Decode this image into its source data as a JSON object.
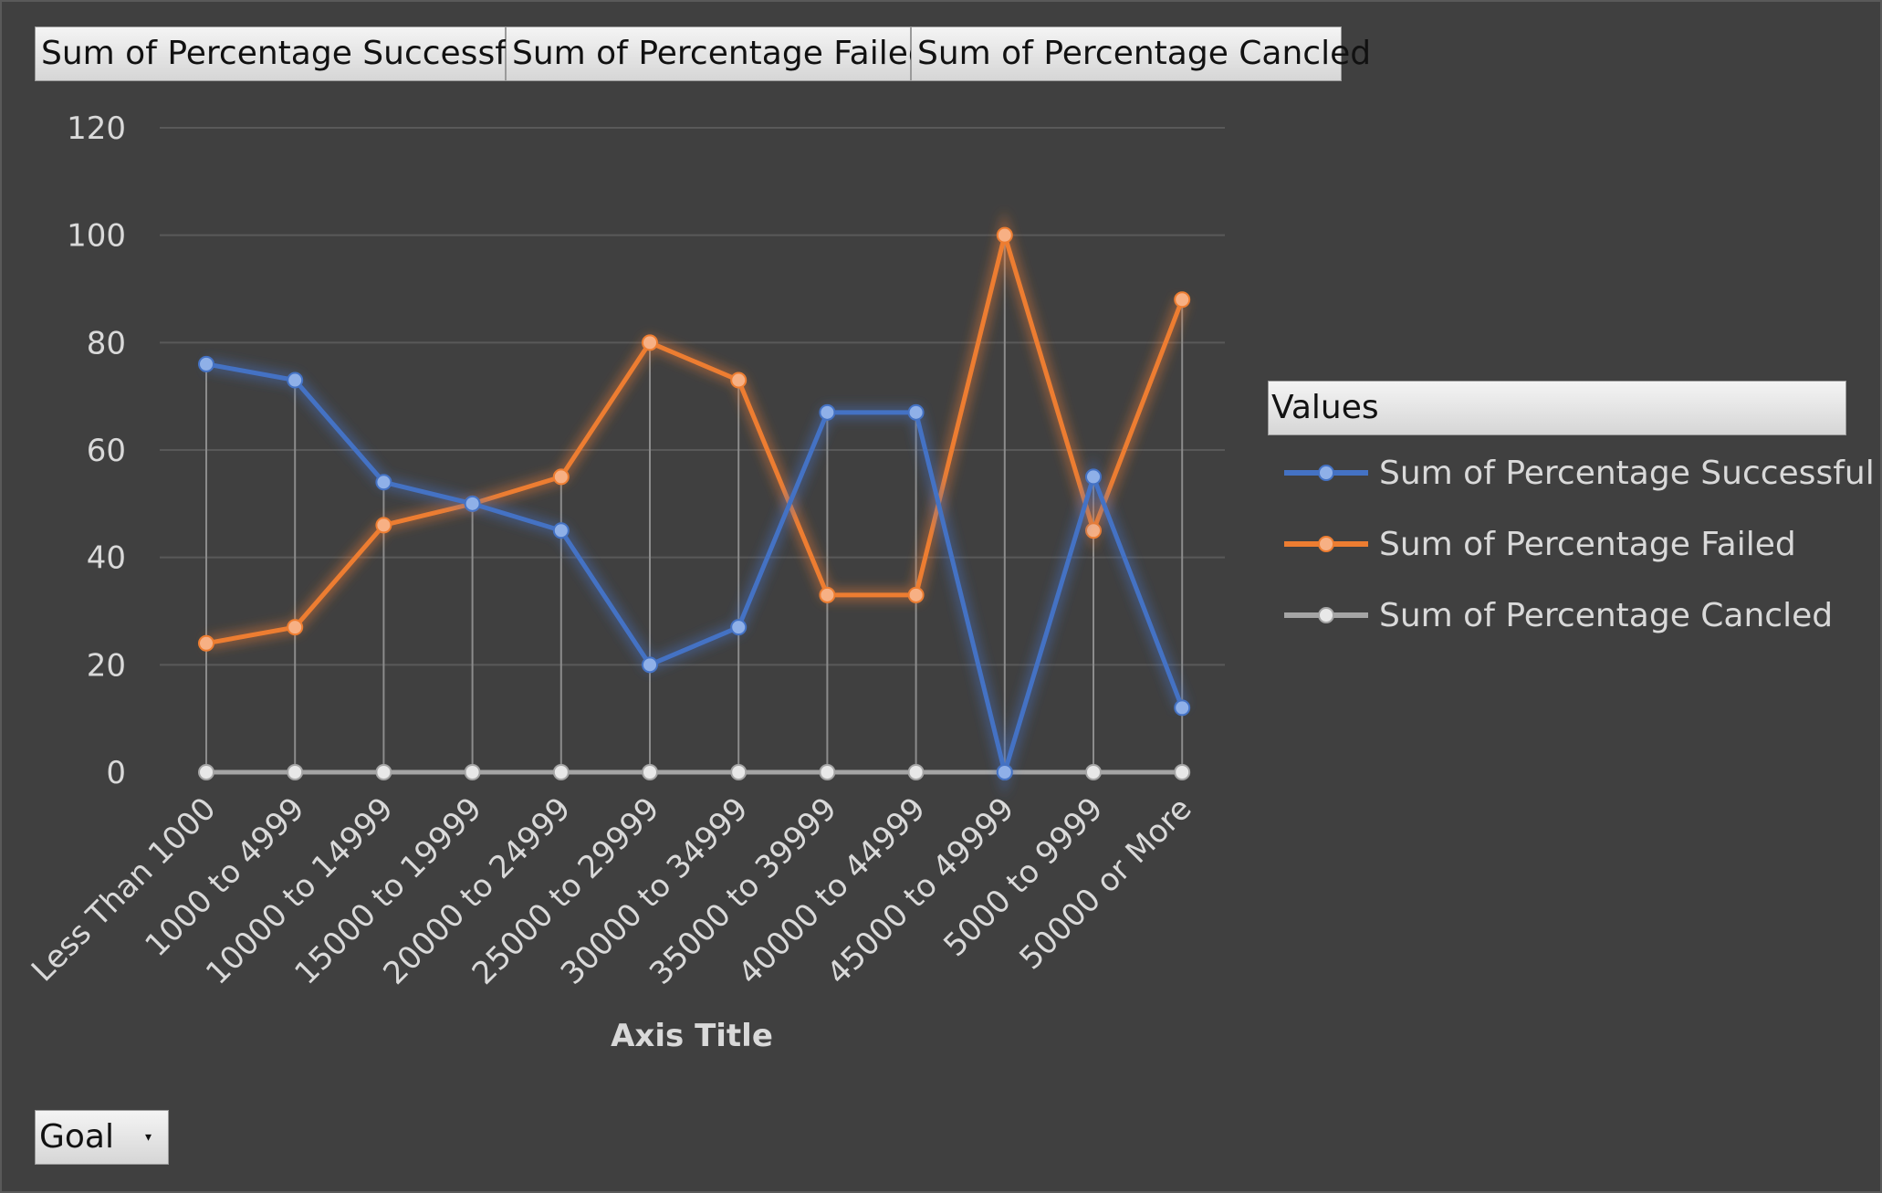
{
  "field_buttons": [
    {
      "label": "Sum of Percentage  Successful"
    },
    {
      "label": "Sum of Percentage  Failed"
    },
    {
      "label": "Sum of Percentage  Cancled"
    }
  ],
  "legend": {
    "title": "Values"
  },
  "filter": {
    "label": "Goal"
  },
  "chart_data": {
    "type": "line",
    "xlabel": "Axis Title",
    "ylabel": "",
    "ylim": [
      0,
      120
    ],
    "yticks": [
      0,
      20,
      40,
      60,
      80,
      100,
      120
    ],
    "grid": true,
    "legend_position": "right",
    "categories": [
      "Less Than 1000",
      "1000 to 4999",
      "10000 to 14999",
      "15000 to 19999",
      "20000 to 24999",
      "25000 to 29999",
      "30000 to 34999",
      "35000 to 39999",
      "40000 to 44999",
      "45000 to 49999",
      "5000 to 9999",
      "50000 or More"
    ],
    "series": [
      {
        "name": "Sum of Percentage Successful",
        "color": "#4472c4",
        "values": [
          76,
          73,
          54,
          50,
          45,
          20,
          27,
          67,
          67,
          0,
          55,
          12
        ]
      },
      {
        "name": "Sum of Percentage Failed",
        "color": "#ed7d31",
        "values": [
          24,
          27,
          46,
          50,
          55,
          80,
          73,
          33,
          33,
          100,
          45,
          88
        ]
      },
      {
        "name": "Sum of Percentage Cancled",
        "color": "#a5a5a5",
        "values": [
          0,
          0,
          0,
          0,
          0,
          0,
          0,
          0,
          0,
          0,
          0,
          0
        ]
      }
    ]
  }
}
